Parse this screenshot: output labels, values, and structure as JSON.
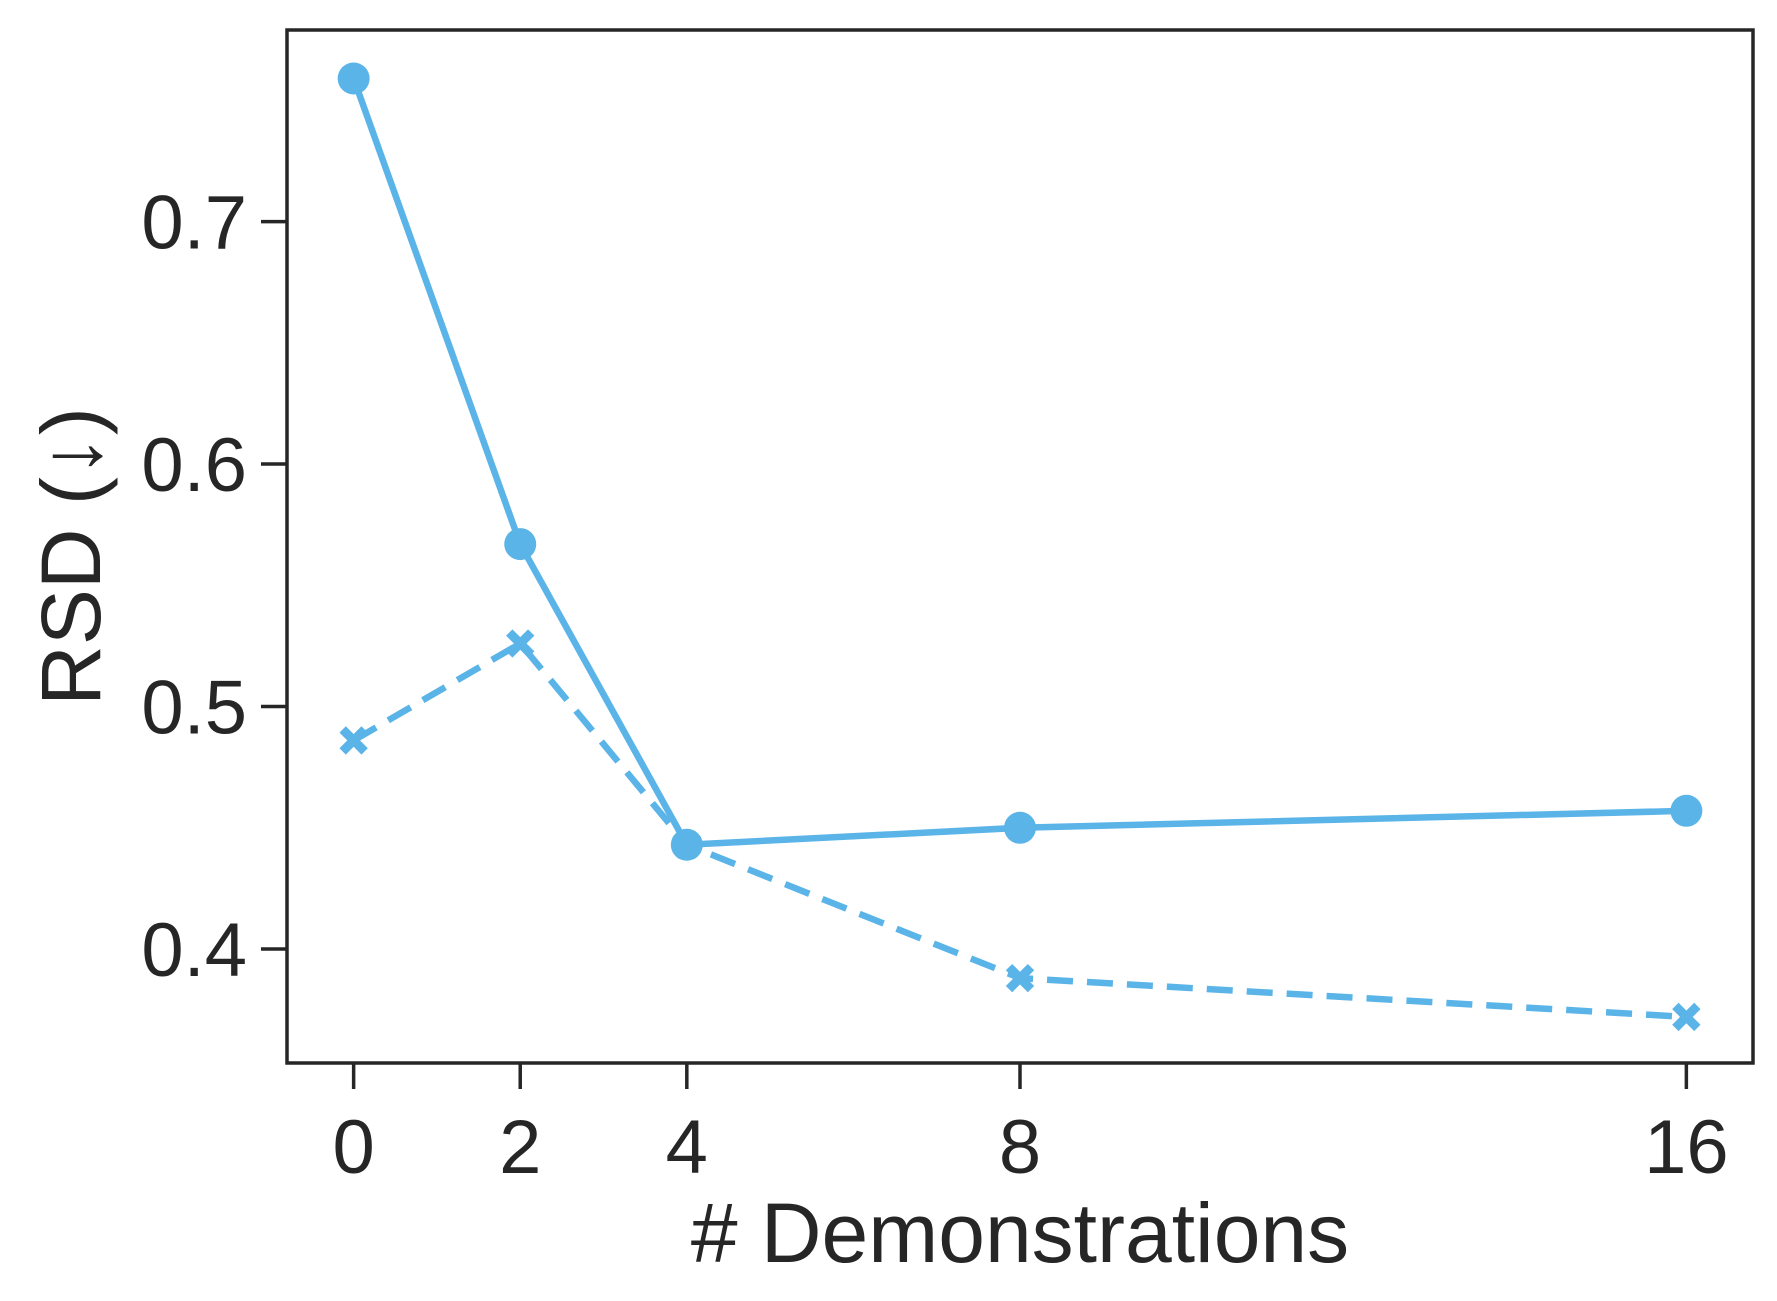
{
  "chart_data": {
    "type": "line",
    "xlabel": "# Demonstrations",
    "ylabel": "RSD (↓)",
    "x": [
      0,
      2,
      4,
      8,
      16
    ],
    "xticks": [
      "0",
      "2",
      "4",
      "8",
      "16"
    ],
    "yticks": [
      "0.4",
      "0.5",
      "0.6",
      "0.7"
    ],
    "ylim": [
      0.353,
      0.779
    ],
    "xlim": [
      -0.8,
      16.8
    ],
    "grid": false,
    "legend": "none",
    "series": [
      {
        "style": "solid",
        "marker": "circle",
        "color": "#5ab4e8",
        "values": [
          0.759,
          0.567,
          0.443,
          0.45,
          0.457
        ]
      },
      {
        "style": "dashed",
        "marker": "x",
        "color": "#5ab4e8",
        "values": [
          0.486,
          0.526,
          0.443,
          0.388,
          0.372
        ]
      }
    ]
  }
}
